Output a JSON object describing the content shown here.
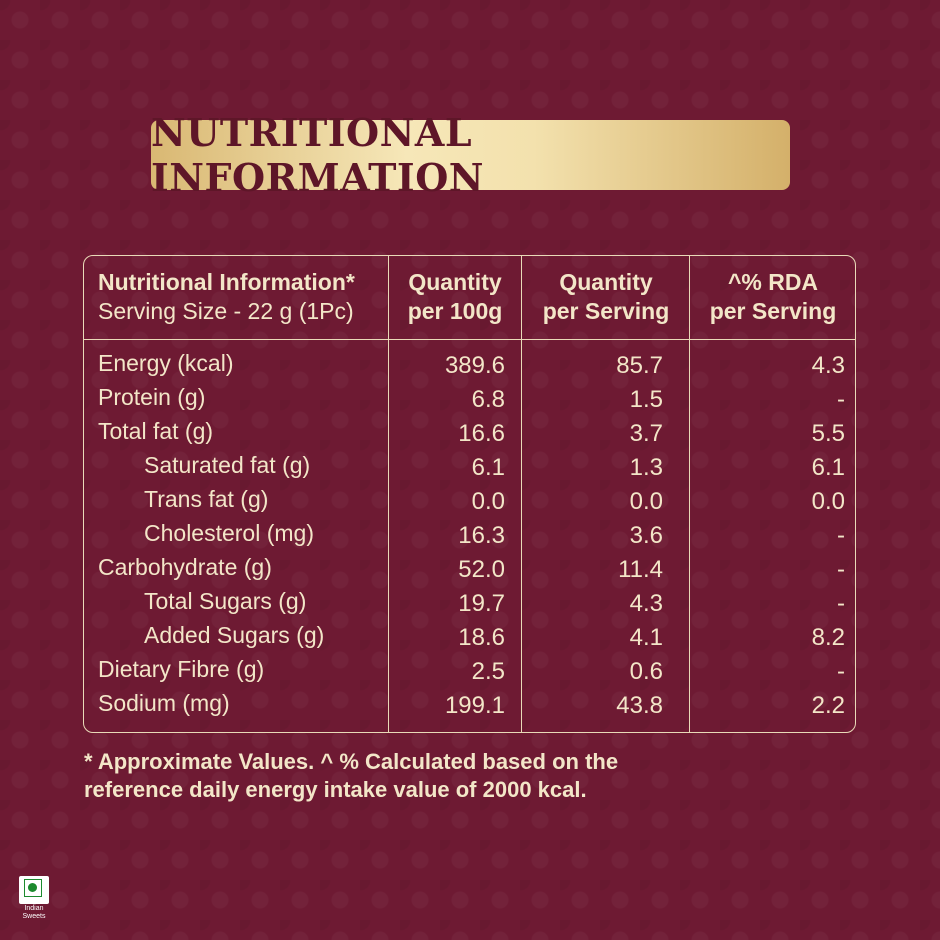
{
  "title": "NUTRITIONAL INFORMATION",
  "table": {
    "header": {
      "col1_line1": "Nutritional Information*",
      "col1_line2": "Serving Size - 22 g (1Pc)",
      "col2_line1": "Quantity",
      "col2_line2": "per 100g",
      "col3_line1": "Quantity",
      "col3_line2": "per Serving",
      "col4_line1": "^% RDA",
      "col4_line2": "per Serving"
    },
    "rows": [
      {
        "name": "Energy (kcal)",
        "per100": "389.6",
        "perServing": "85.7",
        "rda": "4.3"
      },
      {
        "name": "Protein (g)",
        "per100": "6.8",
        "perServing": "1.5",
        "rda": "-"
      },
      {
        "name": "Total fat (g)",
        "per100": "16.6",
        "perServing": "3.7",
        "rda": "5.5"
      },
      {
        "name": "Saturated fat (g)",
        "per100": "6.1",
        "perServing": "1.3",
        "rda": "6.1"
      },
      {
        "name": "Trans fat (g)",
        "per100": "0.0",
        "perServing": "0.0",
        "rda": "0.0"
      },
      {
        "name": "Cholesterol (mg)",
        "per100": "16.3",
        "perServing": "3.6",
        "rda": "-"
      },
      {
        "name": "Carbohydrate (g)",
        "per100": "52.0",
        "perServing": "11.4",
        "rda": "-"
      },
      {
        "name": "Total Sugars (g)",
        "per100": "19.7",
        "perServing": "4.3",
        "rda": "-"
      },
      {
        "name": "Added Sugars (g)",
        "per100": "18.6",
        "perServing": "4.1",
        "rda": "8.2"
      },
      {
        "name": "Dietary Fibre (g)",
        "per100": "2.5",
        "perServing": "0.6",
        "rda": "-"
      },
      {
        "name": "Sodium (mg)",
        "per100": "199.1",
        "perServing": "43.8",
        "rda": "2.2"
      }
    ]
  },
  "footnote": {
    "line1": "* Approximate Values. ^ % Calculated based on the",
    "line2": "reference daily energy intake value of 2000 kcal."
  },
  "veg_mark": {
    "label_line1": "Indian",
    "label_line2": "Sweets",
    "color": "#1c8a2e"
  },
  "colors": {
    "background": "#6e1a33",
    "text": "#f3e6c8",
    "banner_text": "#5e1628"
  }
}
